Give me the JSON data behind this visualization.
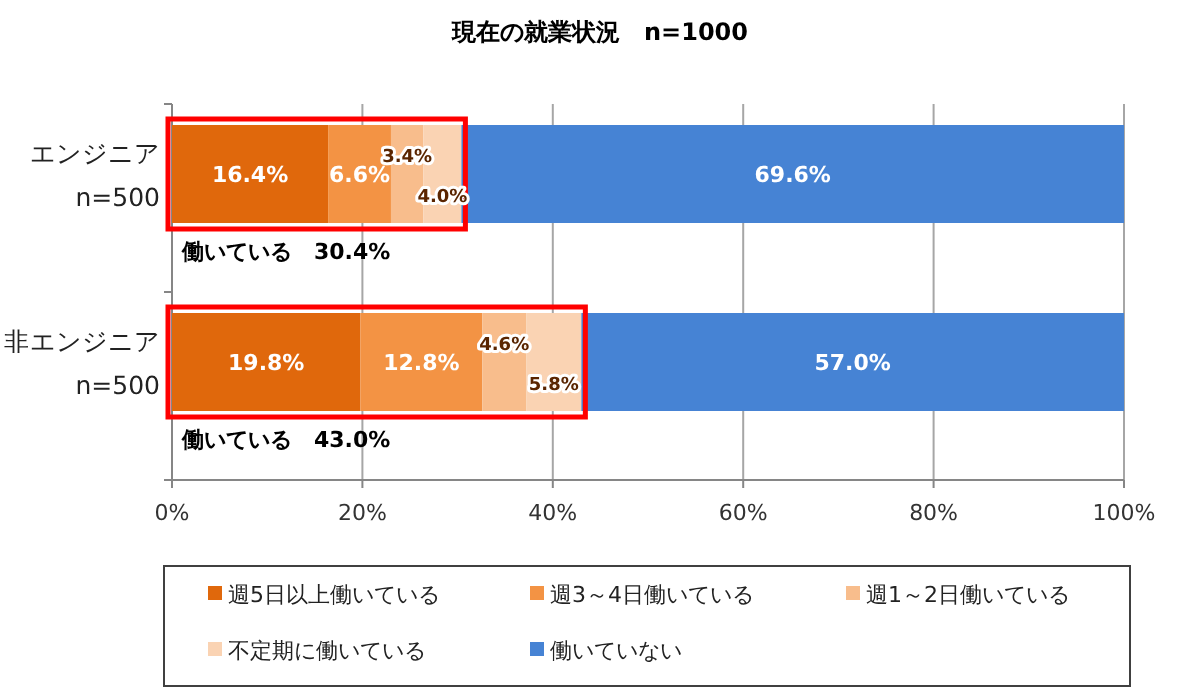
{
  "chart_data": {
    "type": "bar",
    "orientation": "horizontal",
    "stacked": true,
    "title": "現在の就業状況　n=1000",
    "categories": [
      "エンジニア\nn=500",
      "非エンジニア\nn=500"
    ],
    "series": [
      {
        "name": "週5日以上働いている",
        "color": "#e0680c",
        "values": [
          16.4,
          19.8
        ],
        "value_labels": [
          "16.4%",
          "19.8%"
        ]
      },
      {
        "name": "週3～4日働いている",
        "color": "#f39344",
        "values": [
          6.6,
          12.8
        ],
        "value_labels": [
          "6.6%",
          "12.8%"
        ]
      },
      {
        "name": "週1～2日働いている",
        "color": "#f8bd8c",
        "values": [
          3.4,
          4.6
        ],
        "value_labels": [
          "3.4%",
          "4.6%"
        ]
      },
      {
        "name": "不定期に働いている",
        "color": "#fad3b3",
        "values": [
          4.0,
          5.8
        ],
        "value_labels": [
          "4.0%",
          "5.8%"
        ]
      },
      {
        "name": "働いていない",
        "color": "#4683d4",
        "values": [
          69.6,
          57.0
        ],
        "value_labels": [
          "69.6%",
          "57.0%"
        ]
      }
    ],
    "xlim": [
      0,
      100
    ],
    "xticks": [
      {
        "value": 0,
        "label": "0%"
      },
      {
        "value": 20,
        "label": "20%"
      },
      {
        "value": 40,
        "label": "40%"
      },
      {
        "value": 60,
        "label": "60%"
      },
      {
        "value": 80,
        "label": "80%"
      },
      {
        "value": 100,
        "label": "100%"
      }
    ],
    "grid": "x",
    "legend": "bottom",
    "annotations": [
      "働いている　30.4%",
      "働いている　43.0%"
    ]
  }
}
